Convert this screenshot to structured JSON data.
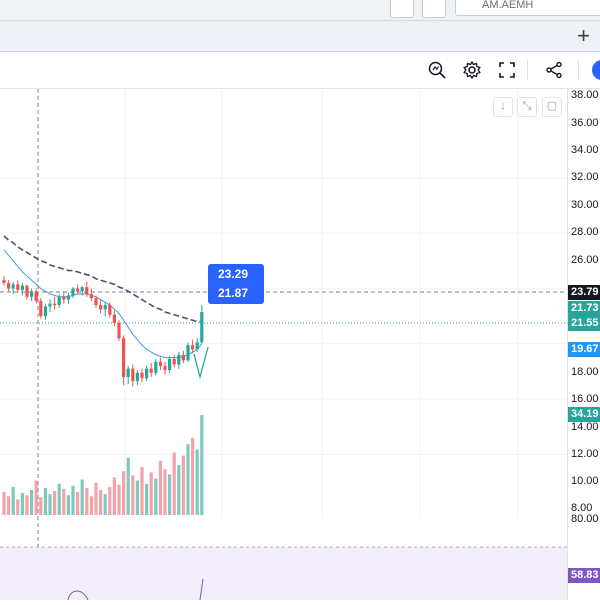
{
  "search": {
    "value": "AM.AEMH"
  },
  "tabbar": {
    "add_label": "+"
  },
  "toolbar": {
    "icons": [
      "zoom-icon",
      "settings-icon",
      "fullscreen-icon",
      "share-icon"
    ]
  },
  "chart_controls": {
    "down_label": "↓",
    "collapse_label": "⤡",
    "maximize_label": "▢"
  },
  "price_axis": {
    "ticks": [
      "38.00",
      "36.00",
      "34.00",
      "32.00",
      "30.00",
      "28.00",
      "26.00",
      "18.00",
      "16.00",
      "14.00",
      "12.00",
      "10.00",
      "8.00",
      "80.00"
    ],
    "labels": {
      "last_price": "23.79",
      "ma1": "21.73",
      "ma2": "21.55",
      "ma3": "19.67",
      "volume": "34.19",
      "indicator": "58.83"
    }
  },
  "tooltip": {
    "line1": "23.29",
    "line2": "21.87"
  },
  "colors": {
    "up": "#26a69a",
    "down": "#ef5350",
    "vol_up": "#7fc8bd",
    "vol_down": "#f2a3a8",
    "ma_blue": "#3aa0d4",
    "ma_dash": "#4a5273",
    "accent": "#2962ff",
    "last_price_bg": "#131722",
    "ma1_bg": "#26a69a",
    "ma2_bg": "#26a69a",
    "ma3_bg": "#2196f3",
    "volume_bg": "#26a69a",
    "indicator_bg": "#7e57c2"
  },
  "chart_data": {
    "type": "line",
    "title": "",
    "xlabel": "",
    "ylabel": "",
    "ylim": [
      8,
      38
    ],
    "candles": [
      [
        24.6,
        24.9,
        24.2,
        24.4
      ],
      [
        24.4,
        24.6,
        23.8,
        24.0
      ],
      [
        24.0,
        24.5,
        23.6,
        24.3
      ],
      [
        24.3,
        24.6,
        23.7,
        23.9
      ],
      [
        23.9,
        24.4,
        23.5,
        24.2
      ],
      [
        24.2,
        24.3,
        23.2,
        23.4
      ],
      [
        23.4,
        24.0,
        23.1,
        23.8
      ],
      [
        23.8,
        24.0,
        22.9,
        23.1
      ],
      [
        23.1,
        23.3,
        21.8,
        22.0
      ],
      [
        22.0,
        22.9,
        21.7,
        22.7
      ],
      [
        22.7,
        23.2,
        22.3,
        22.9
      ],
      [
        22.9,
        23.4,
        22.5,
        22.8
      ],
      [
        22.8,
        23.6,
        22.6,
        23.4
      ],
      [
        23.4,
        23.8,
        22.9,
        23.2
      ],
      [
        23.2,
        23.7,
        22.9,
        23.5
      ],
      [
        23.5,
        24.1,
        23.3,
        24.0
      ],
      [
        24.0,
        24.3,
        23.6,
        23.8
      ],
      [
        23.8,
        24.2,
        23.5,
        24.1
      ],
      [
        24.1,
        24.5,
        23.4,
        23.6
      ],
      [
        23.6,
        24.0,
        23.1,
        23.3
      ],
      [
        23.3,
        23.5,
        22.6,
        22.8
      ],
      [
        22.8,
        23.2,
        22.2,
        22.5
      ],
      [
        22.5,
        23.0,
        22.0,
        22.8
      ],
      [
        22.8,
        23.0,
        21.9,
        22.1
      ],
      [
        22.1,
        22.4,
        21.3,
        21.5
      ],
      [
        21.5,
        21.7,
        20.2,
        20.4
      ],
      [
        20.4,
        20.6,
        17.0,
        17.6
      ],
      [
        17.6,
        18.4,
        17.1,
        18.2
      ],
      [
        18.2,
        18.5,
        16.9,
        17.3
      ],
      [
        17.3,
        18.1,
        17.0,
        17.9
      ],
      [
        17.9,
        18.2,
        17.2,
        17.5
      ],
      [
        17.5,
        18.4,
        17.3,
        18.2
      ],
      [
        18.2,
        18.6,
        17.6,
        17.9
      ],
      [
        17.9,
        18.9,
        17.7,
        18.7
      ],
      [
        18.7,
        19.0,
        18.1,
        18.4
      ],
      [
        18.4,
        18.7,
        17.8,
        18.1
      ],
      [
        18.1,
        19.1,
        17.9,
        18.9
      ],
      [
        18.9,
        19.2,
        18.3,
        18.5
      ],
      [
        18.5,
        19.4,
        18.2,
        19.2
      ],
      [
        19.2,
        19.5,
        18.6,
        18.8
      ],
      [
        18.8,
        20.1,
        18.7,
        19.9
      ],
      [
        19.9,
        20.3,
        19.3,
        19.6
      ],
      [
        19.6,
        20.4,
        19.4,
        20.1
      ],
      [
        20.1,
        22.8,
        20.0,
        22.3
      ]
    ],
    "volume": [
      22,
      18,
      27,
      15,
      21,
      19,
      24,
      33,
      17,
      26,
      20,
      23,
      30,
      25,
      19,
      28,
      22,
      34,
      26,
      18,
      31,
      24,
      20,
      27,
      36,
      29,
      42,
      55,
      38,
      33,
      46,
      30,
      41,
      35,
      52,
      44,
      39,
      60,
      48,
      57,
      68,
      74,
      63,
      96
    ],
    "ma_blue": [
      26.8,
      26.4,
      26.0,
      25.6,
      25.2,
      24.9,
      24.6,
      24.3,
      24.0,
      23.8,
      23.6,
      23.5,
      23.4,
      23.4,
      23.4,
      23.5,
      23.6,
      23.6,
      23.6,
      23.5,
      23.4,
      23.2,
      23.0,
      22.8,
      22.5,
      22.2,
      21.7,
      21.2,
      20.7,
      20.3,
      19.9,
      19.6,
      19.4,
      19.2,
      19.1,
      19.0,
      19.0,
      19.0,
      19.0,
      19.1,
      19.2,
      19.4,
      19.6,
      20.0
    ],
    "ma_dashed": [
      27.8,
      27.5,
      27.3,
      27.0,
      26.8,
      26.6,
      26.4,
      26.2,
      26.0,
      25.9,
      25.7,
      25.6,
      25.5,
      25.4,
      25.3,
      25.3,
      25.2,
      25.1,
      25.0,
      24.9,
      24.7,
      24.6,
      24.5,
      24.4,
      24.3,
      24.1,
      24.0,
      23.8,
      23.6,
      23.4,
      23.2,
      23.0,
      22.8,
      22.6,
      22.5,
      22.3,
      22.2,
      22.1,
      22.0,
      21.9,
      21.8,
      21.7,
      21.6,
      21.6
    ]
  }
}
